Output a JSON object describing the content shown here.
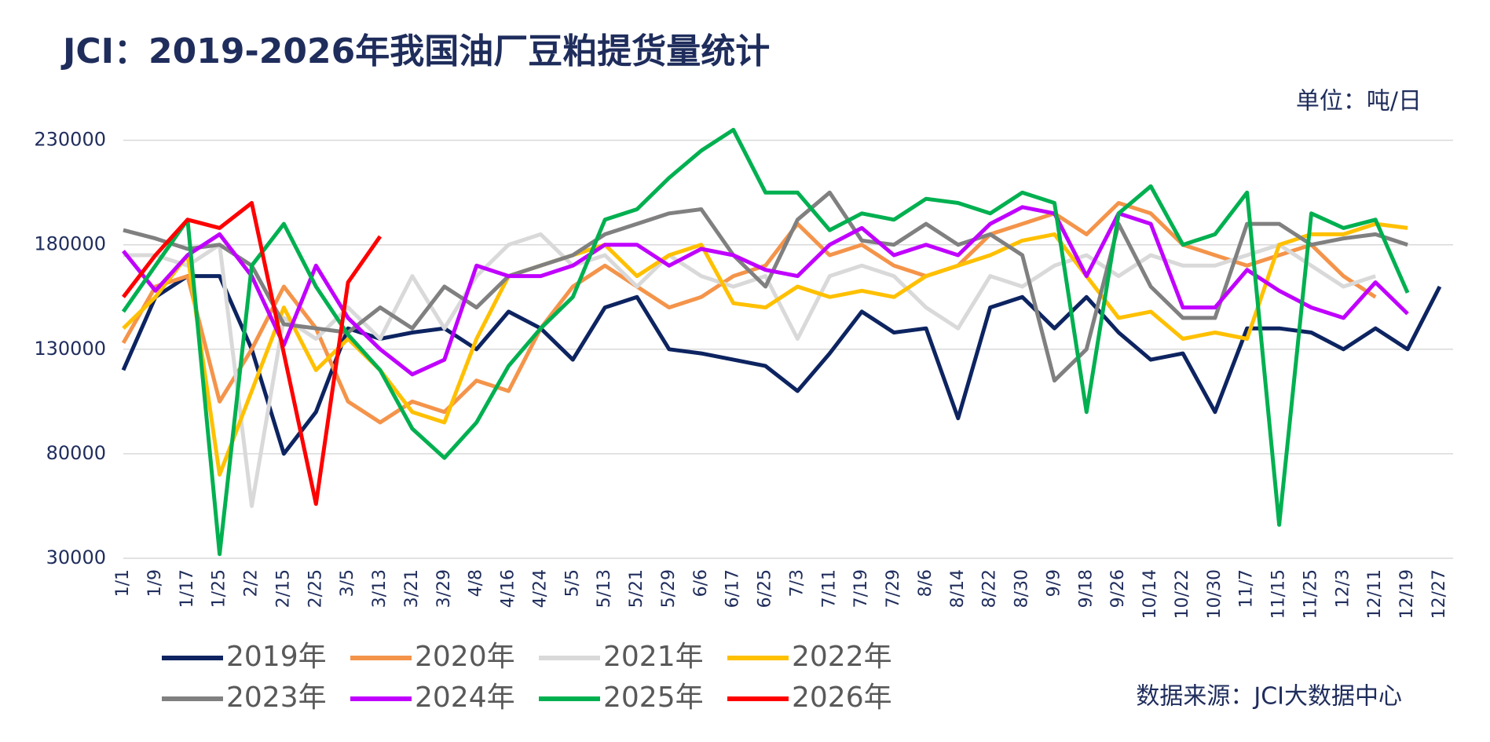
{
  "chart_data": {
    "type": "line",
    "title": "JCI：2019-2026年我国油厂豆粕提货量统计",
    "unit_label": "单位：吨/日",
    "source": "数据来源：JCI大数据中心",
    "categories": [
      "1/1",
      "1/9",
      "1/17",
      "1/25",
      "2/2",
      "2/15",
      "2/25",
      "3/5",
      "3/13",
      "3/21",
      "3/29",
      "4/8",
      "4/16",
      "4/24",
      "5/5",
      "5/13",
      "5/21",
      "5/29",
      "6/6",
      "6/17",
      "6/25",
      "7/3",
      "7/11",
      "7/19",
      "7/29",
      "8/6",
      "8/14",
      "8/22",
      "8/30",
      "9/9",
      "9/18",
      "9/26",
      "10/14",
      "10/22",
      "10/30",
      "11/7",
      "11/15",
      "11/25",
      "12/3",
      "12/11",
      "12/19",
      "12/27"
    ],
    "ylim": [
      30000,
      240000
    ],
    "yticks": [
      30000,
      80000,
      130000,
      180000,
      230000
    ],
    "grid": true,
    "series": [
      {
        "name": "2019年",
        "color": "#0d2461",
        "values": [
          120000,
          155000,
          165000,
          165000,
          130000,
          80000,
          100000,
          140000,
          135000,
          138000,
          140000,
          130000,
          148000,
          140000,
          125000,
          150000,
          155000,
          130000,
          128000,
          125000,
          122000,
          110000,
          128000,
          148000,
          138000,
          140000,
          97000,
          150000,
          155000,
          140000,
          155000,
          138000,
          125000,
          128000,
          100000,
          140000,
          140000,
          138000,
          130000,
          140000,
          130000,
          160000
        ]
      },
      {
        "name": "2020年",
        "color": "#f4944a",
        "values": [
          133000,
          160000,
          165000,
          105000,
          130000,
          160000,
          140000,
          105000,
          95000,
          105000,
          100000,
          115000,
          110000,
          140000,
          160000,
          170000,
          160000,
          150000,
          155000,
          165000,
          170000,
          190000,
          175000,
          180000,
          170000,
          165000,
          170000,
          185000,
          190000,
          195000,
          185000,
          200000,
          195000,
          180000,
          175000,
          170000,
          175000,
          180000,
          165000,
          155000,
          null,
          null
        ]
      },
      {
        "name": "2021年",
        "color": "#d9d9d9",
        "values": [
          175000,
          175000,
          170000,
          180000,
          55000,
          145000,
          135000,
          150000,
          135000,
          165000,
          140000,
          165000,
          180000,
          185000,
          170000,
          175000,
          160000,
          175000,
          165000,
          160000,
          165000,
          135000,
          165000,
          170000,
          165000,
          150000,
          140000,
          165000,
          160000,
          170000,
          175000,
          165000,
          175000,
          170000,
          170000,
          175000,
          180000,
          170000,
          160000,
          165000,
          null,
          null
        ]
      },
      {
        "name": "2022年",
        "color": "#ffc000",
        "values": [
          140000,
          155000,
          175000,
          70000,
          110000,
          150000,
          120000,
          135000,
          120000,
          100000,
          95000,
          135000,
          165000,
          170000,
          175000,
          180000,
          165000,
          175000,
          180000,
          152000,
          150000,
          160000,
          155000,
          158000,
          155000,
          165000,
          170000,
          175000,
          182000,
          185000,
          165000,
          145000,
          148000,
          135000,
          138000,
          135000,
          180000,
          185000,
          185000,
          190000,
          188000,
          null
        ]
      },
      {
        "name": "2023年",
        "color": "#808080",
        "values": [
          187000,
          183000,
          178000,
          180000,
          170000,
          142000,
          140000,
          138000,
          150000,
          140000,
          160000,
          150000,
          165000,
          170000,
          175000,
          185000,
          190000,
          195000,
          197000,
          175000,
          160000,
          192000,
          205000,
          182000,
          180000,
          190000,
          180000,
          185000,
          175000,
          115000,
          130000,
          190000,
          160000,
          145000,
          145000,
          190000,
          190000,
          180000,
          183000,
          185000,
          180000,
          null
        ]
      },
      {
        "name": "2024年",
        "color": "#c000ff",
        "values": [
          177000,
          158000,
          175000,
          185000,
          165000,
          132000,
          170000,
          145000,
          130000,
          118000,
          125000,
          170000,
          165000,
          165000,
          170000,
          180000,
          180000,
          170000,
          178000,
          175000,
          168000,
          165000,
          180000,
          188000,
          175000,
          180000,
          175000,
          190000,
          198000,
          195000,
          165000,
          195000,
          190000,
          150000,
          150000,
          168000,
          158000,
          150000,
          145000,
          162000,
          147000,
          null
        ]
      },
      {
        "name": "2025年",
        "color": "#00b050",
        "values": [
          148000,
          170000,
          192000,
          32000,
          170000,
          190000,
          160000,
          137000,
          120000,
          92000,
          78000,
          95000,
          122000,
          140000,
          155000,
          192000,
          197000,
          212000,
          225000,
          235000,
          205000,
          205000,
          187000,
          195000,
          192000,
          202000,
          200000,
          195000,
          205000,
          200000,
          100000,
          195000,
          208000,
          180000,
          185000,
          205000,
          46000,
          195000,
          188000,
          192000,
          157000,
          null
        ]
      },
      {
        "name": "2026年",
        "color": "#ff0000",
        "values": [
          155000,
          175000,
          192000,
          188000,
          200000,
          128000,
          56000,
          162000,
          184000,
          null,
          null,
          null,
          null,
          null,
          null,
          null,
          null,
          null,
          null,
          null,
          null,
          null,
          null,
          null,
          null,
          null,
          null,
          null,
          null,
          null,
          null,
          null,
          null,
          null,
          null,
          null,
          null,
          null,
          null,
          null,
          null,
          null
        ]
      }
    ]
  }
}
